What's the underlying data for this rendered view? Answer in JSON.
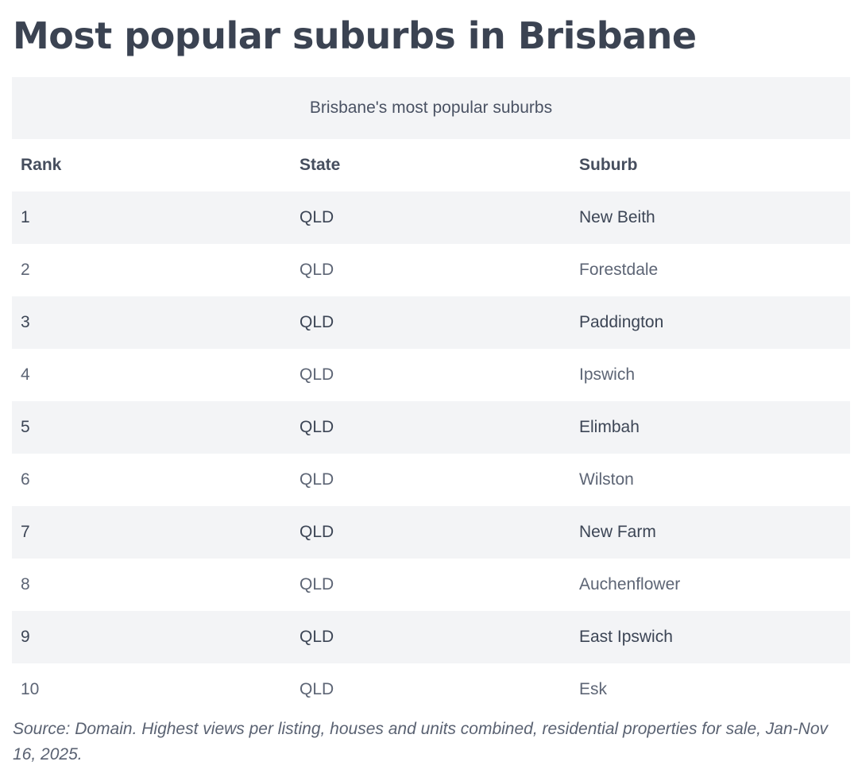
{
  "title": "Most popular suburbs in Brisbane",
  "table": {
    "caption": "Brisbane's most popular suburbs",
    "columns": [
      "Rank",
      "State",
      "Suburb"
    ],
    "rows": [
      [
        "1",
        "QLD",
        "New Beith"
      ],
      [
        "2",
        "QLD",
        "Forestdale"
      ],
      [
        "3",
        "QLD",
        "Paddington"
      ],
      [
        "4",
        "QLD",
        "Ipswich"
      ],
      [
        "5",
        "QLD",
        "Elimbah"
      ],
      [
        "6",
        "QLD",
        "Wilston"
      ],
      [
        "7",
        "QLD",
        "New Farm"
      ],
      [
        "8",
        "QLD",
        "Auchenflower"
      ],
      [
        "9",
        "QLD",
        "East Ipswich"
      ],
      [
        "10",
        "QLD",
        "Esk"
      ]
    ]
  },
  "source": "Source: Domain. Highest views per listing, houses and units combined, residential properties for sale, Jan-Nov 16, 2025."
}
